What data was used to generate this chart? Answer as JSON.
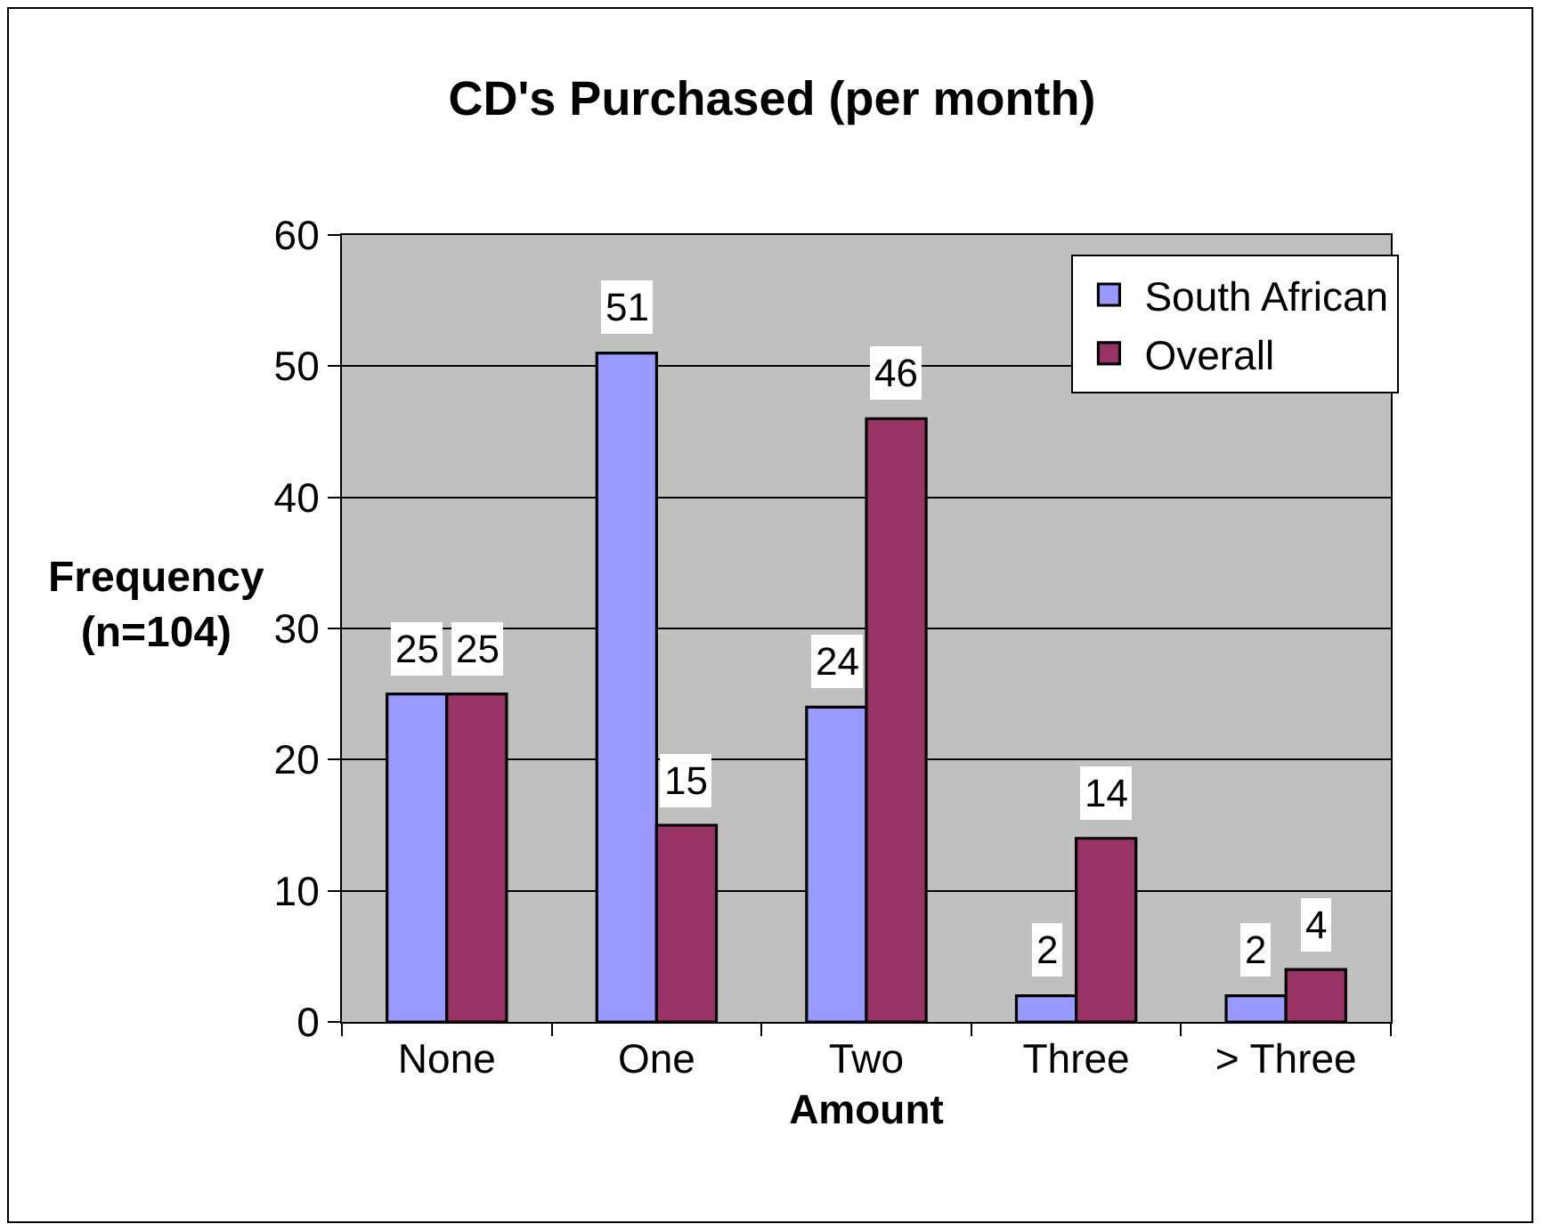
{
  "chart_data": {
    "type": "bar",
    "title": "CD's Purchased (per month)",
    "xlabel": "Amount",
    "ylabel": "Frequency\n(n=104)",
    "categories": [
      "None",
      "One",
      "Two",
      "Three",
      "> Three"
    ],
    "series": [
      {
        "name": "South African",
        "color": "#9999ff",
        "values": [
          25,
          51,
          24,
          2,
          2
        ]
      },
      {
        "name": "Overall",
        "color": "#993366",
        "values": [
          25,
          15,
          46,
          14,
          4
        ]
      }
    ],
    "ylim": [
      0,
      60
    ],
    "yticks": [
      0,
      10,
      20,
      30,
      40,
      50,
      60
    ],
    "grid": "y",
    "legend": "top right",
    "data_labels": true
  }
}
